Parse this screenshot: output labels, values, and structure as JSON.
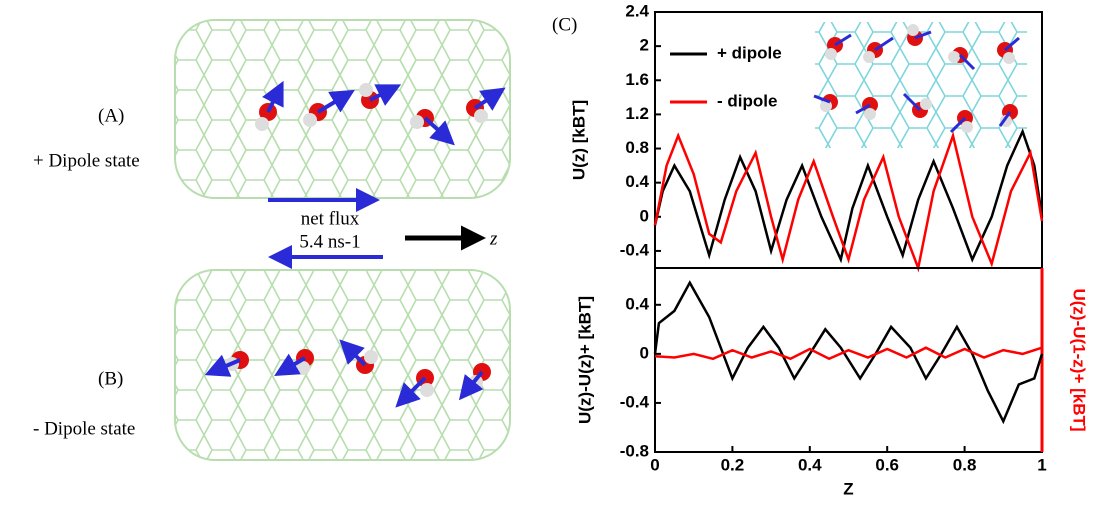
{
  "figure": {
    "panel_a": "(A)",
    "state_a": "+ Dipole state",
    "panel_b": "(B)",
    "state_b": "- Dipole state",
    "flux_label": "net flux",
    "flux_value": "5.4 ns-1",
    "z_label": "z",
    "panel_c": "(C)"
  },
  "chart_data": [
    {
      "type": "line",
      "ylabel": "U(z) [kBT]",
      "xlim": [
        0,
        1
      ],
      "ylim": [
        -0.6,
        2.4
      ],
      "yticks": [
        -0.4,
        0.0,
        0.4,
        0.8,
        1.2,
        1.6,
        2.0,
        2.4
      ],
      "legend": "upper left",
      "series": [
        {
          "name": "+ dipole",
          "color": "#000000",
          "x": [
            0,
            0.02,
            0.05,
            0.09,
            0.14,
            0.18,
            0.22,
            0.26,
            0.3,
            0.34,
            0.38,
            0.43,
            0.48,
            0.51,
            0.55,
            0.6,
            0.64,
            0.68,
            0.72,
            0.77,
            0.82,
            0.87,
            0.91,
            0.95,
            0.98,
            1.0
          ],
          "values": [
            -0.1,
            0.3,
            0.6,
            0.3,
            -0.45,
            0.2,
            0.7,
            0.3,
            -0.4,
            0.2,
            0.6,
            0.0,
            -0.5,
            0.1,
            0.6,
            0.0,
            -0.45,
            0.2,
            0.65,
            0.1,
            -0.5,
            0.0,
            0.6,
            1.0,
            0.6,
            0.0
          ]
        },
        {
          "name": "- dipole",
          "color": "#ff0000",
          "x": [
            0,
            0.03,
            0.06,
            0.1,
            0.14,
            0.17,
            0.21,
            0.26,
            0.3,
            0.33,
            0.37,
            0.41,
            0.46,
            0.5,
            0.54,
            0.59,
            0.63,
            0.68,
            0.72,
            0.77,
            0.82,
            0.87,
            0.92,
            0.97,
            1.0
          ],
          "values": [
            -0.1,
            0.6,
            0.95,
            0.5,
            -0.2,
            -0.3,
            0.3,
            0.75,
            0.0,
            -0.5,
            0.2,
            0.65,
            0.0,
            -0.5,
            0.2,
            0.7,
            0.0,
            -0.6,
            0.3,
            0.95,
            0.0,
            -0.55,
            0.3,
            0.75,
            -0.05
          ]
        }
      ]
    },
    {
      "type": "line",
      "xlabel": "Z",
      "ylabel": "U(z)-U(z)+ [kBT]",
      "y2label": "U(z)-U(1-z)+ [kBT]",
      "xlim": [
        0,
        1
      ],
      "xticks": [
        0.0,
        0.2,
        0.4,
        0.6,
        0.8,
        1.0
      ],
      "ylim": [
        -0.8,
        0.7
      ],
      "yticks": [
        -0.8,
        -0.4,
        0.0,
        0.4
      ],
      "series": [
        {
          "name": "U(z)-U(z)+",
          "color": "#000000",
          "x": [
            0,
            0.01,
            0.05,
            0.09,
            0.14,
            0.2,
            0.24,
            0.28,
            0.32,
            0.36,
            0.4,
            0.44,
            0.48,
            0.53,
            0.57,
            0.61,
            0.66,
            0.7,
            0.74,
            0.78,
            0.82,
            0.86,
            0.9,
            0.94,
            0.98,
            1.0
          ],
          "values": [
            0.0,
            0.25,
            0.35,
            0.58,
            0.3,
            -0.2,
            0.05,
            0.22,
            0.05,
            -0.2,
            0.0,
            0.2,
            0.05,
            -0.2,
            0.0,
            0.22,
            0.05,
            -0.2,
            0.0,
            0.22,
            0.0,
            -0.3,
            -0.55,
            -0.25,
            -0.2,
            0.0
          ]
        },
        {
          "name": "U(z)-U(1-z)+",
          "color": "#ff0000",
          "x": [
            0,
            0.05,
            0.1,
            0.15,
            0.2,
            0.25,
            0.3,
            0.35,
            0.4,
            0.45,
            0.5,
            0.55,
            0.6,
            0.65,
            0.7,
            0.75,
            0.8,
            0.85,
            0.9,
            0.95,
            1.0
          ],
          "values": [
            -0.02,
            -0.03,
            0.0,
            -0.04,
            0.03,
            -0.03,
            0.02,
            -0.04,
            0.04,
            -0.04,
            0.03,
            -0.03,
            0.04,
            -0.03,
            0.05,
            -0.03,
            0.04,
            -0.03,
            0.03,
            0.0,
            0.05
          ]
        }
      ]
    }
  ]
}
